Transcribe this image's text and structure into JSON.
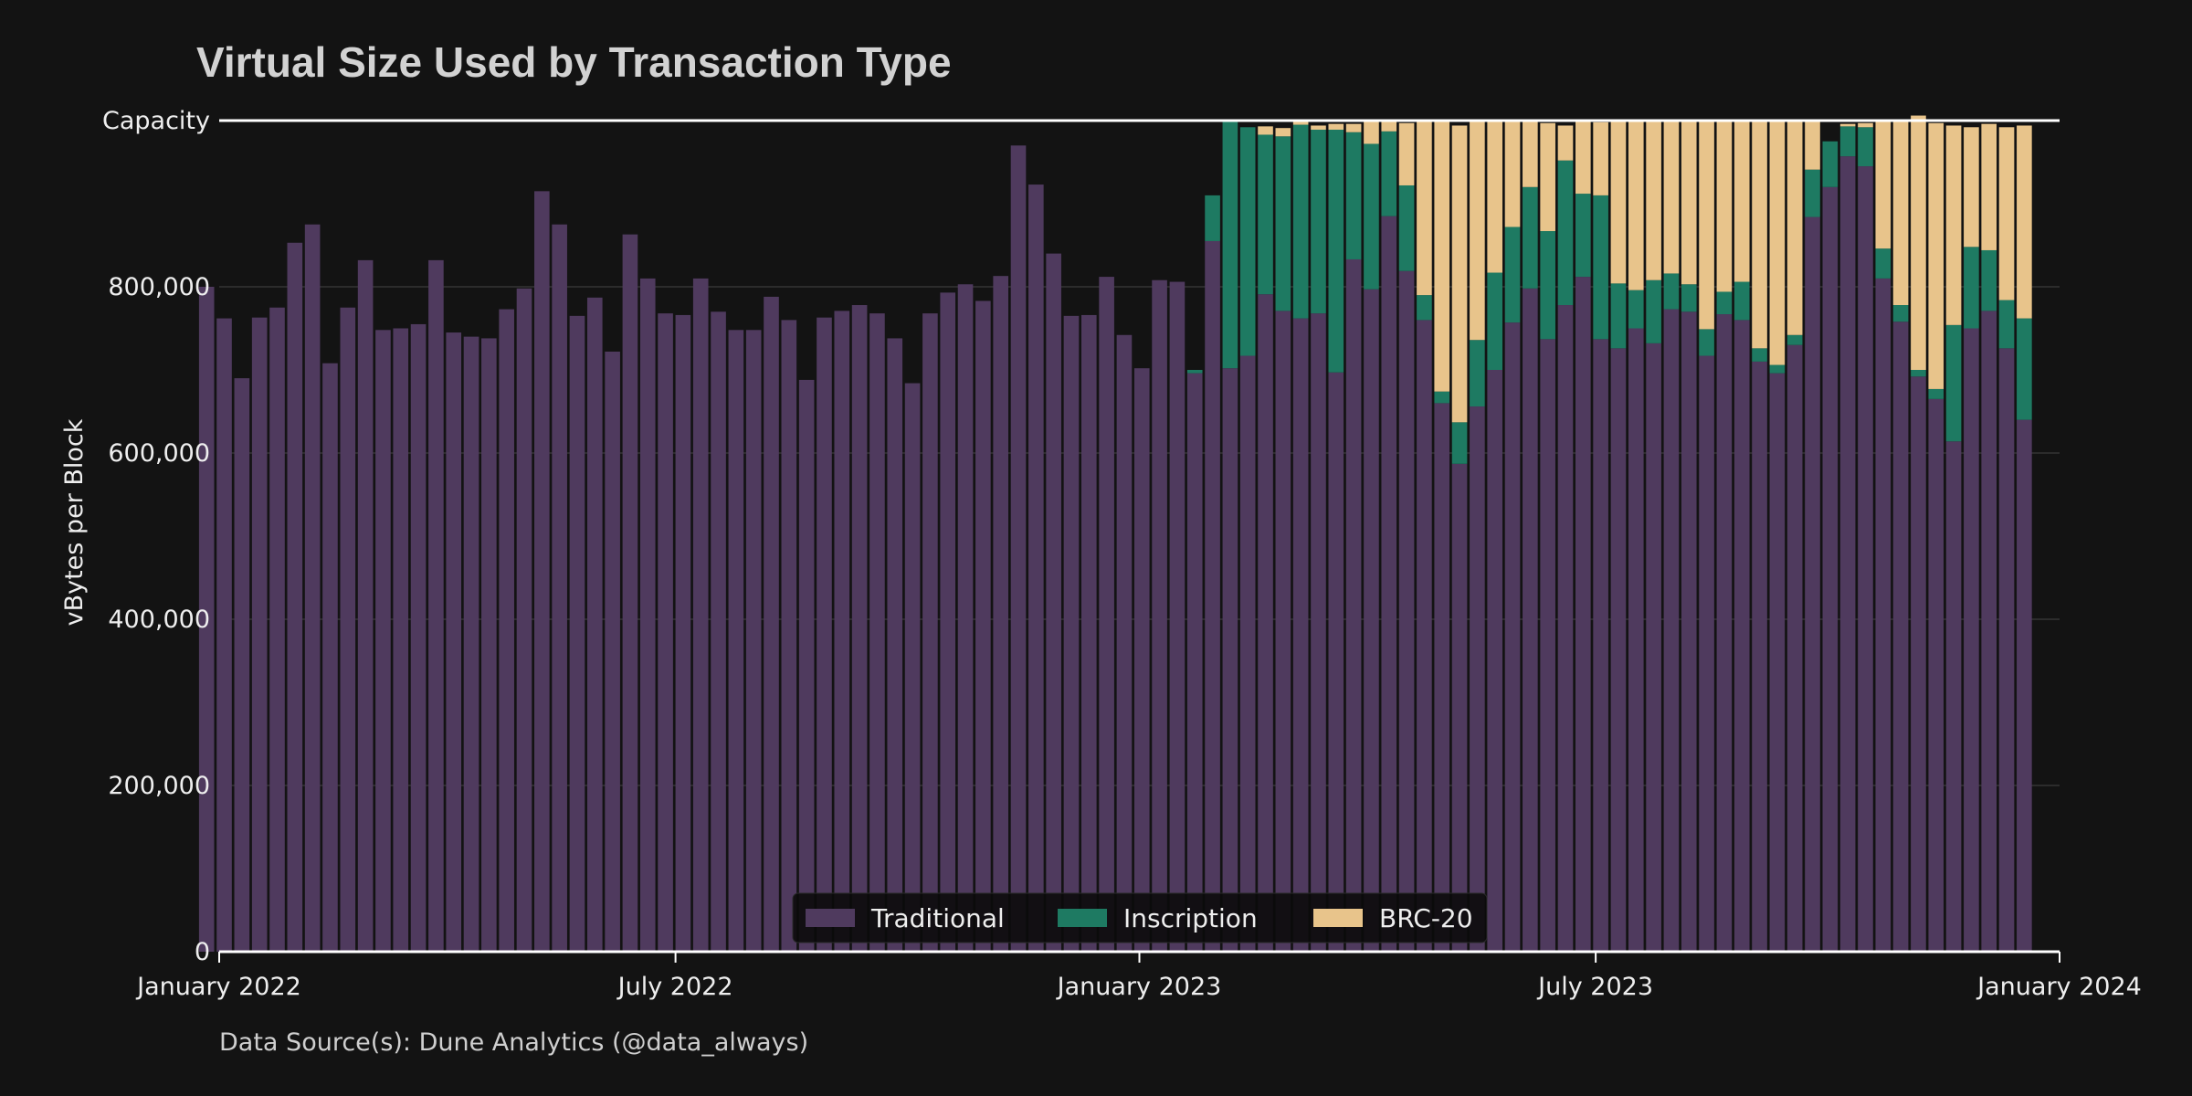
{
  "chart_data": {
    "type": "bar",
    "stacked": true,
    "title": "Virtual Size Used by Transaction Type",
    "ylabel": "vBytes per Block",
    "xlabel": "",
    "source": "Data Source(s): Dune Analytics (@data_always)",
    "capacity_label": "Capacity",
    "capacity_value": 1000000,
    "ylim": [
      0,
      1000000
    ],
    "y_ticks": [
      0,
      200000,
      400000,
      600000,
      800000
    ],
    "y_tick_labels": [
      "0",
      "200,000",
      "400,000",
      "600,000",
      "800,000"
    ],
    "x_range": [
      "2022-01-01",
      "2024-01-01"
    ],
    "x_ticks": [
      {
        "date": "2022-01-01",
        "label": "January 2022"
      },
      {
        "date": "2022-07-01",
        "label": "July 2022"
      },
      {
        "date": "2023-01-01",
        "label": "January 2023"
      },
      {
        "date": "2023-07-01",
        "label": "July 2023"
      },
      {
        "date": "2024-01-01",
        "label": "January 2024"
      }
    ],
    "bar_interval": "weekly",
    "first_bar_date": "2021-12-27",
    "grid": true,
    "legend_placement": "bottom-center",
    "colors": {
      "Traditional": "#4f3a5e",
      "Inscription": "#1e7a62",
      "BRC-20": "#e8c48b"
    },
    "series": [
      {
        "name": "Traditional",
        "values": [
          800000,
          762000,
          690000,
          763000,
          775000,
          853000,
          875000,
          708000,
          775000,
          832000,
          748000,
          750000,
          755000,
          832000,
          745000,
          740000,
          738000,
          773000,
          798000,
          915000,
          875000,
          765000,
          787000,
          722000,
          863000,
          810000,
          768000,
          766000,
          810000,
          770000,
          748000,
          748000,
          788000,
          760000,
          688000,
          763000,
          771000,
          778000,
          768000,
          738000,
          684000,
          768000,
          793000,
          803000,
          783000,
          813000,
          970000,
          923000,
          840000,
          765000,
          766000,
          812000,
          742000,
          702000,
          808000,
          806000,
          696000,
          855000,
          702000,
          717000,
          791000,
          771000,
          762000,
          768000,
          697000,
          833000,
          797000,
          885000,
          819000,
          760000,
          660000,
          587000,
          656000,
          700000,
          757000,
          798000,
          737000,
          778000,
          812000,
          737000,
          726000,
          750000,
          732000,
          773000,
          770000,
          717000,
          767000,
          760000,
          710000,
          696000,
          730000,
          884000,
          920000,
          957000,
          945000,
          810000,
          758000,
          692000,
          665000,
          614000,
          750000,
          771000,
          726000,
          640000
        ]
      },
      {
        "name": "Inscription",
        "values": [
          0,
          0,
          0,
          0,
          0,
          0,
          0,
          0,
          0,
          0,
          0,
          0,
          0,
          0,
          0,
          0,
          0,
          0,
          0,
          0,
          0,
          0,
          0,
          0,
          0,
          0,
          0,
          0,
          0,
          0,
          0,
          0,
          0,
          0,
          0,
          0,
          0,
          0,
          0,
          0,
          0,
          0,
          0,
          0,
          0,
          0,
          0,
          0,
          0,
          0,
          0,
          0,
          0,
          0,
          0,
          0,
          4000,
          55000,
          297000,
          275000,
          192000,
          210000,
          233000,
          221000,
          292000,
          153000,
          175000,
          102000,
          103000,
          30000,
          14000,
          50000,
          80000,
          117000,
          115000,
          122000,
          130000,
          174000,
          100000,
          173000,
          78000,
          46000,
          76000,
          43000,
          33000,
          32000,
          27000,
          46000,
          16000,
          10000,
          12000,
          57000,
          55000,
          36000,
          47000,
          36000,
          20000,
          8000,
          12000,
          140000,
          98000,
          73000,
          58000,
          122000
        ]
      },
      {
        "name": "BRC-20",
        "values": [
          0,
          0,
          0,
          0,
          0,
          0,
          0,
          0,
          0,
          0,
          0,
          0,
          0,
          0,
          0,
          0,
          0,
          0,
          0,
          0,
          0,
          0,
          0,
          0,
          0,
          0,
          0,
          0,
          0,
          0,
          0,
          0,
          0,
          0,
          0,
          0,
          0,
          0,
          0,
          0,
          0,
          0,
          0,
          0,
          0,
          0,
          0,
          0,
          0,
          0,
          0,
          0,
          0,
          0,
          0,
          0,
          0,
          0,
          0,
          0,
          10000,
          10000,
          4000,
          5000,
          7000,
          10000,
          28000,
          13000,
          75000,
          210000,
          326000,
          357000,
          264000,
          183000,
          128000,
          80000,
          130000,
          42000,
          87000,
          88000,
          196000,
          204000,
          192000,
          184000,
          197000,
          251000,
          206000,
          193000,
          274000,
          294000,
          258000,
          59000,
          0,
          3000,
          5000,
          154000,
          222000,
          306000,
          320000,
          240000,
          144000,
          152000,
          208000,
          232000
        ]
      }
    ]
  },
  "legend": {
    "items": [
      "Traditional",
      "Inscription",
      "BRC-20"
    ]
  }
}
